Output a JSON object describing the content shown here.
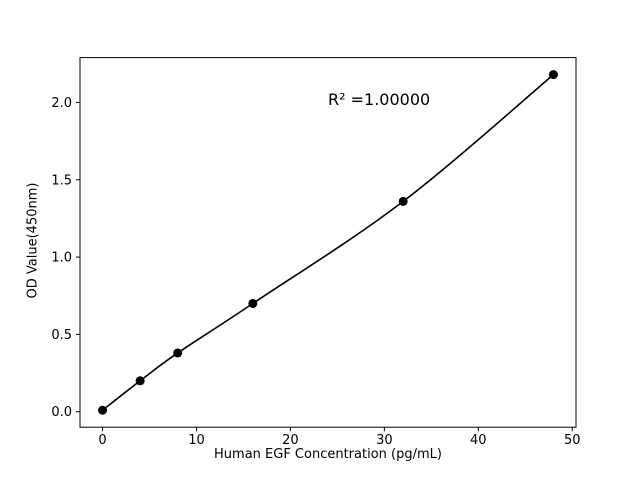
{
  "chart_data": {
    "type": "scatter",
    "x": [
      0,
      4,
      8,
      16,
      32,
      48
    ],
    "y": [
      0.01,
      0.2,
      0.38,
      0.7,
      1.36,
      2.18
    ],
    "title": "",
    "xlabel": "Human EGF Concentration (pg/mL)",
    "ylabel": "OD Value(450nm)",
    "annotation": "R² =1.00000",
    "xlim": [
      -2.4,
      50.4
    ],
    "ylim": [
      -0.1,
      2.29
    ],
    "xticks": [
      0,
      10,
      20,
      30,
      40,
      50
    ],
    "yticks": [
      0.0,
      0.5,
      1.0,
      1.5,
      2.0
    ],
    "legend": null,
    "grid": false,
    "marker_color": "#000000",
    "line_color": "#000000",
    "background": "#ffffff"
  }
}
